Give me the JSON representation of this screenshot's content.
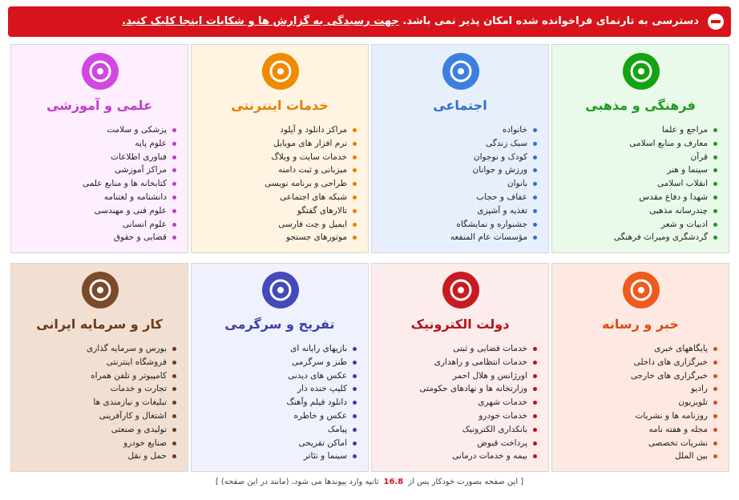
{
  "banner": {
    "text": "دسترسی به تارنمای فراخوانده شده امکان پذیر نمی باشد.",
    "link": "جهت رسیدگی به گزارش ها و شکایات اینجا کلیک کنید."
  },
  "cards": [
    {
      "title": "فرهنگی و مذهبی",
      "items": [
        "مراجع و علما",
        "معارف و منابع اسلامی",
        "قرآن",
        "سینما و هنر",
        "انقلاب اسلامی",
        "شهدا و دفاع مقدس",
        "چندرسانه مذهبی",
        "ادبیات و شعر",
        "گردشگری ومیراث فرهنگی"
      ]
    },
    {
      "title": "اجتماعی",
      "items": [
        "خانواده",
        "سبک زندگی",
        "کودک و نوجوان",
        "ورزش و جوانان",
        "بانوان",
        "عفاف و حجاب",
        "تغذیه و آشپزی",
        "جشنواره و نمایشگاه",
        "مؤسسات عام المنفعه"
      ]
    },
    {
      "title": "خدمات اینترنتی",
      "items": [
        "مراکز دانلود و آپلود",
        "نرم افزار های موبایل",
        "خدمات سایت و وبلاگ",
        "میزبانی و ثبت دامنه",
        "طراحی و برنامه نویسی",
        "شبکه های اجتماعی",
        "تالارهای گفتگو",
        "ایمیل و چت فارسی",
        "موتورهای جستجو"
      ]
    },
    {
      "title": "علمی و آموزشی",
      "items": [
        "پزشکی و سلامت",
        "علوم پایه",
        "فناوری اطلاعات",
        "مراکز آموزشی",
        "کتابخانه ها و منابع علمی",
        "دانشنامه و لغتنامه",
        "علوم فنی و مهندسی",
        "علوم انسانی",
        "قضایی و حقوق"
      ]
    },
    {
      "title": "خبر و رسانه",
      "items": [
        "پایگاههای خبری",
        "خبرگزاری های داخلی",
        "خبرگزاری های خارجی",
        "رادیو",
        "تلویزیون",
        "روزنامه ها و نشریات",
        "مجله و هفته نامه",
        "نشریات تخصصی",
        "بین الملل"
      ]
    },
    {
      "title": "دولت الکترونیک",
      "items": [
        "خدمات قضایی و ثبتی",
        "خدمات انتظامی و راهداری",
        "اورژانس و هلال احمر",
        "وزارتخانه ها و نهادهای حکومتی",
        "خدمات شهری",
        "خدمات خودرو",
        "بانکداری الکترونیک",
        "پرداخت قبوض",
        "بیمه و خدمات درمانی"
      ]
    },
    {
      "title": "تفریح و سرگرمی",
      "items": [
        "بازیهای رایانه ای",
        "طنز و سرگرمی",
        "عکس های دیدنی",
        "کلیپ خنده دار",
        "دانلود فیلم وآهنگ",
        "عکس و خاطره",
        "پیامک",
        "اماکن تفریحی",
        "سینما و تئاتر"
      ]
    },
    {
      "title": "کار و سرمایه ایرانی",
      "items": [
        "بورس و سرمایه گذاری",
        "فروشگاه اینترنتی",
        "کامپیوتر و تلفن همراه",
        "تجارت و خدمات",
        "تبلیغات و نیازمندی ها",
        "اشتغال و کارآفرینی",
        "تولیدی و صنعتی",
        "صنایع خودرو",
        "حمل و نقل"
      ]
    }
  ],
  "footer": {
    "prefix": "[ این صفحه بصورت خودکار پس از",
    "seconds": 16.8,
    "suffix": "ثانیه وارد پیوندها می شود، (مانند در این صفحه) ]"
  }
}
